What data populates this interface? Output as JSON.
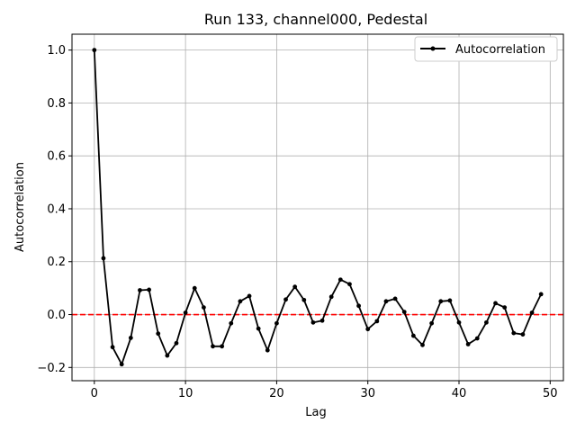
{
  "chart_data": {
    "type": "line",
    "title": "Run 133, channel000, Pedestal",
    "xlabel": "Lag",
    "ylabel": "Autocorrelation",
    "xlim": [
      -2.45,
      51.45
    ],
    "ylim": [
      -0.25,
      1.06
    ],
    "x_ticks": [
      0,
      10,
      20,
      30,
      40,
      50
    ],
    "x_tick_labels": [
      "0",
      "10",
      "20",
      "30",
      "40",
      "50"
    ],
    "y_ticks": [
      -0.2,
      0.0,
      0.2,
      0.4,
      0.6,
      0.8,
      1.0
    ],
    "y_tick_labels": [
      "−0.2",
      "0.0",
      "0.2",
      "0.4",
      "0.6",
      "0.8",
      "1.0"
    ],
    "grid": true,
    "legend_position": "top-right",
    "reference_line": {
      "y": 0.0,
      "color": "#ff0000",
      "style": "dashed"
    },
    "series": [
      {
        "name": "Autocorrelation",
        "color": "#000000",
        "marker": "dot",
        "x": [
          0,
          1,
          2,
          3,
          4,
          5,
          6,
          7,
          8,
          9,
          10,
          11,
          12,
          13,
          14,
          15,
          16,
          17,
          18,
          19,
          20,
          21,
          22,
          23,
          24,
          25,
          26,
          27,
          28,
          29,
          30,
          31,
          32,
          33,
          34,
          35,
          36,
          37,
          38,
          39,
          40,
          41,
          42,
          43,
          44,
          45,
          46,
          47,
          48,
          49
        ],
        "y": [
          1.0,
          0.213,
          -0.123,
          -0.188,
          -0.088,
          0.092,
          0.094,
          -0.072,
          -0.155,
          -0.108,
          0.007,
          0.1,
          0.027,
          -0.12,
          -0.12,
          -0.033,
          0.05,
          0.07,
          -0.053,
          -0.135,
          -0.033,
          0.057,
          0.105,
          0.055,
          -0.03,
          -0.023,
          0.067,
          0.132,
          0.115,
          0.033,
          -0.055,
          -0.025,
          0.05,
          0.06,
          0.01,
          -0.08,
          -0.115,
          -0.033,
          0.05,
          0.053,
          -0.03,
          -0.112,
          -0.09,
          -0.03,
          0.043,
          0.027,
          -0.07,
          -0.075,
          0.007,
          0.077
        ]
      }
    ]
  }
}
